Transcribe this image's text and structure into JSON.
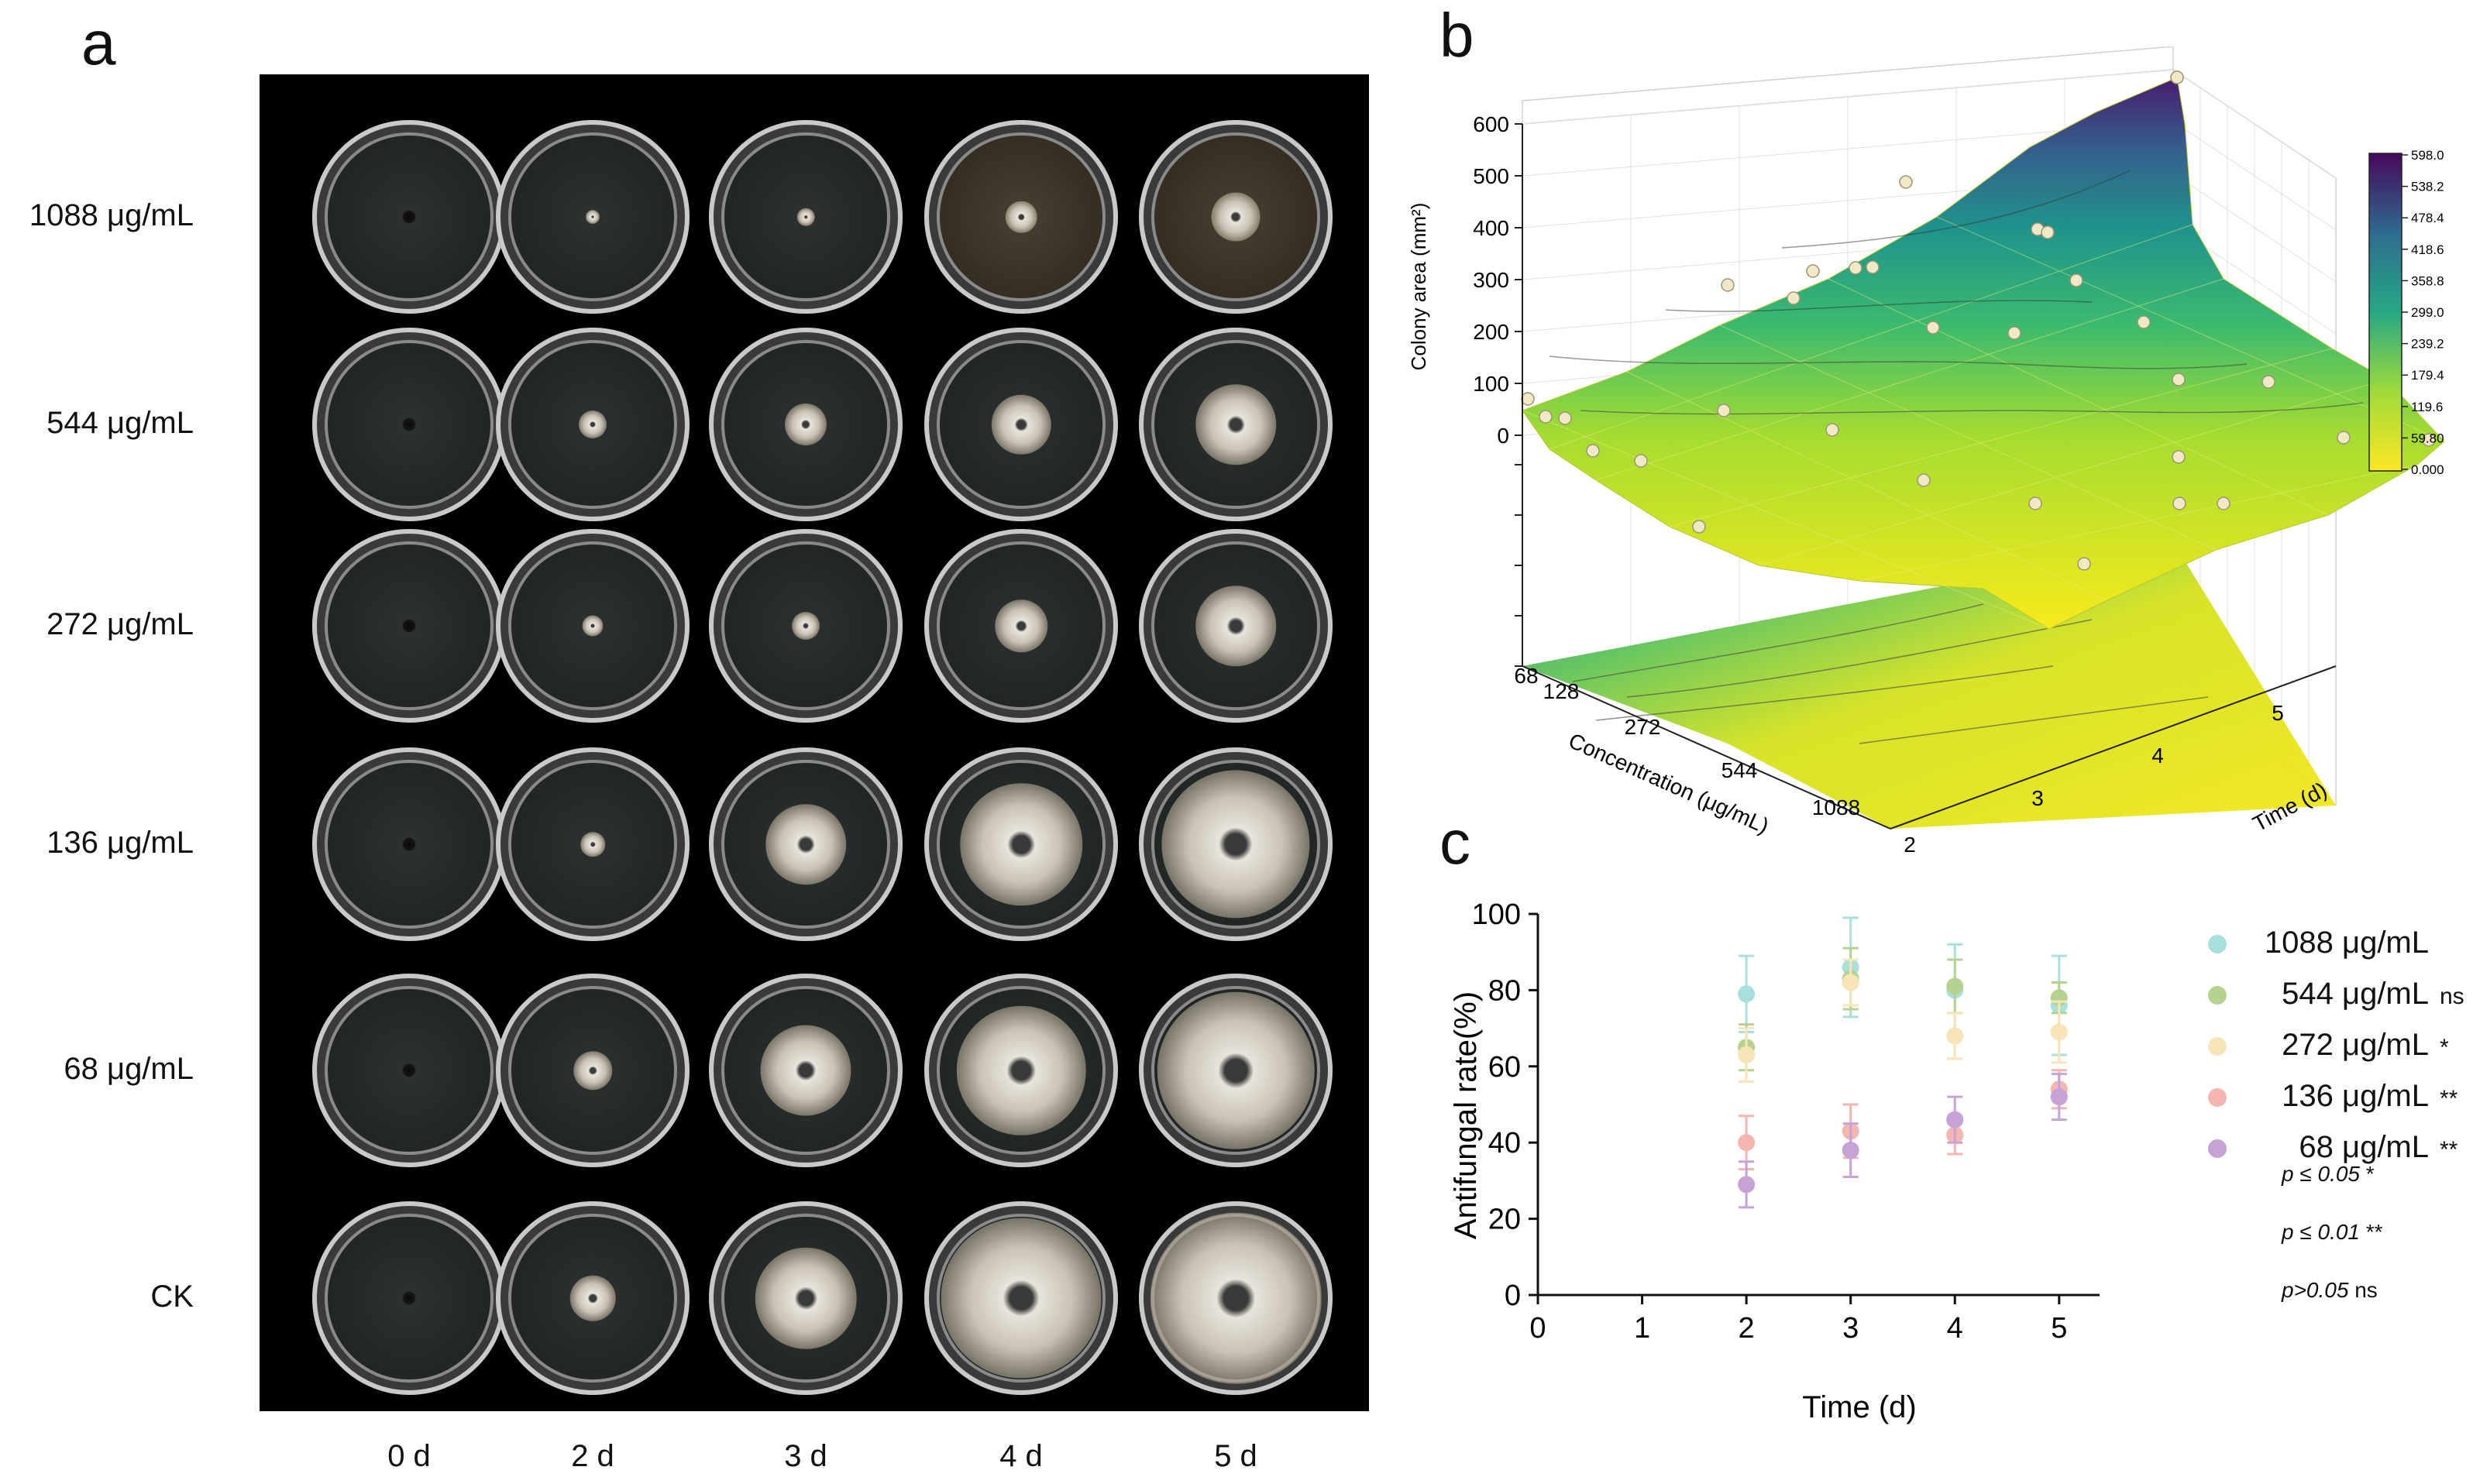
{
  "panels": {
    "a": "a",
    "b": "b",
    "c": "c"
  },
  "panel_a": {
    "rows": [
      "1088 μg/mL",
      "544 μg/mL",
      "272 μg/mL",
      "136 μg/mL",
      "68 μg/mL",
      "CK"
    ],
    "columns": [
      "0 d",
      "2 d",
      "3 d",
      "4 d",
      "5 d"
    ],
    "colony_relative_size": [
      [
        0.0,
        0.05,
        0.1,
        0.18,
        0.28
      ],
      [
        0.0,
        0.16,
        0.24,
        0.34,
        0.46
      ],
      [
        0.0,
        0.12,
        0.16,
        0.3,
        0.46
      ],
      [
        0.0,
        0.14,
        0.46,
        0.7,
        0.85
      ],
      [
        0.0,
        0.22,
        0.52,
        0.74,
        0.9
      ],
      [
        0.0,
        0.26,
        0.58,
        0.92,
        0.98
      ]
    ]
  },
  "panel_b": {
    "zlabel": "Colony area (mm²)",
    "xlabel": "Concentration (μg/mL)",
    "ylabel": "Time (d)",
    "z_ticks": [
      "600",
      "500",
      "400",
      "300",
      "200",
      "100",
      "0"
    ],
    "x_ticks": [
      "68",
      "128",
      "272",
      "544",
      "1088"
    ],
    "y_ticks": [
      "2",
      "3",
      "4",
      "5"
    ],
    "colorbar_ticks": [
      "598.0",
      "538.2",
      "478.4",
      "418.6",
      "358.8",
      "299.0",
      "239.2",
      "179.4",
      "119.6",
      "59.80",
      "0.000"
    ]
  },
  "chart_data": {
    "type": "scatter",
    "xlabel": "Time (d)",
    "ylabel": "Antifungal rate(%)",
    "xlim": [
      0,
      5
    ],
    "ylim": [
      0,
      100
    ],
    "x_ticks": [
      "0",
      "1",
      "2",
      "3",
      "4",
      "5"
    ],
    "y_ticks": [
      "0",
      "20",
      "40",
      "60",
      "80",
      "100"
    ],
    "x": [
      2,
      3,
      4,
      5
    ],
    "series": [
      {
        "name": "1088 μg/mL",
        "color": "#a8e0dc",
        "values": [
          79,
          86,
          80,
          76
        ],
        "err": [
          10,
          13,
          12,
          13
        ],
        "sig": ""
      },
      {
        "name": "544 μg/mL",
        "color": "#b5d38f",
        "values": [
          65,
          83,
          81,
          78
        ],
        "err": [
          6,
          8,
          7,
          4
        ],
        "sig": "ns"
      },
      {
        "name": "272 μg/mL",
        "color": "#f7e4b8",
        "values": [
          63,
          82,
          68,
          69
        ],
        "err": [
          7,
          6,
          6,
          8
        ],
        "sig": "*"
      },
      {
        "name": "136 μg/mL",
        "color": "#f4b6ae",
        "values": [
          40,
          43,
          42,
          54
        ],
        "err": [
          7,
          7,
          5,
          5
        ],
        "sig": "**"
      },
      {
        "name": "68 μg/mL",
        "color": "#c7a2d6",
        "values": [
          29,
          38,
          46,
          52
        ],
        "err": [
          6,
          7,
          6,
          6
        ],
        "sig": "**"
      }
    ],
    "notes": [
      {
        "label": "p ≤ 0.05",
        "sig": "*"
      },
      {
        "label": "p ≤ 0.01",
        "sig": "**"
      },
      {
        "label": "p>0.05",
        "sig": "ns"
      }
    ]
  }
}
